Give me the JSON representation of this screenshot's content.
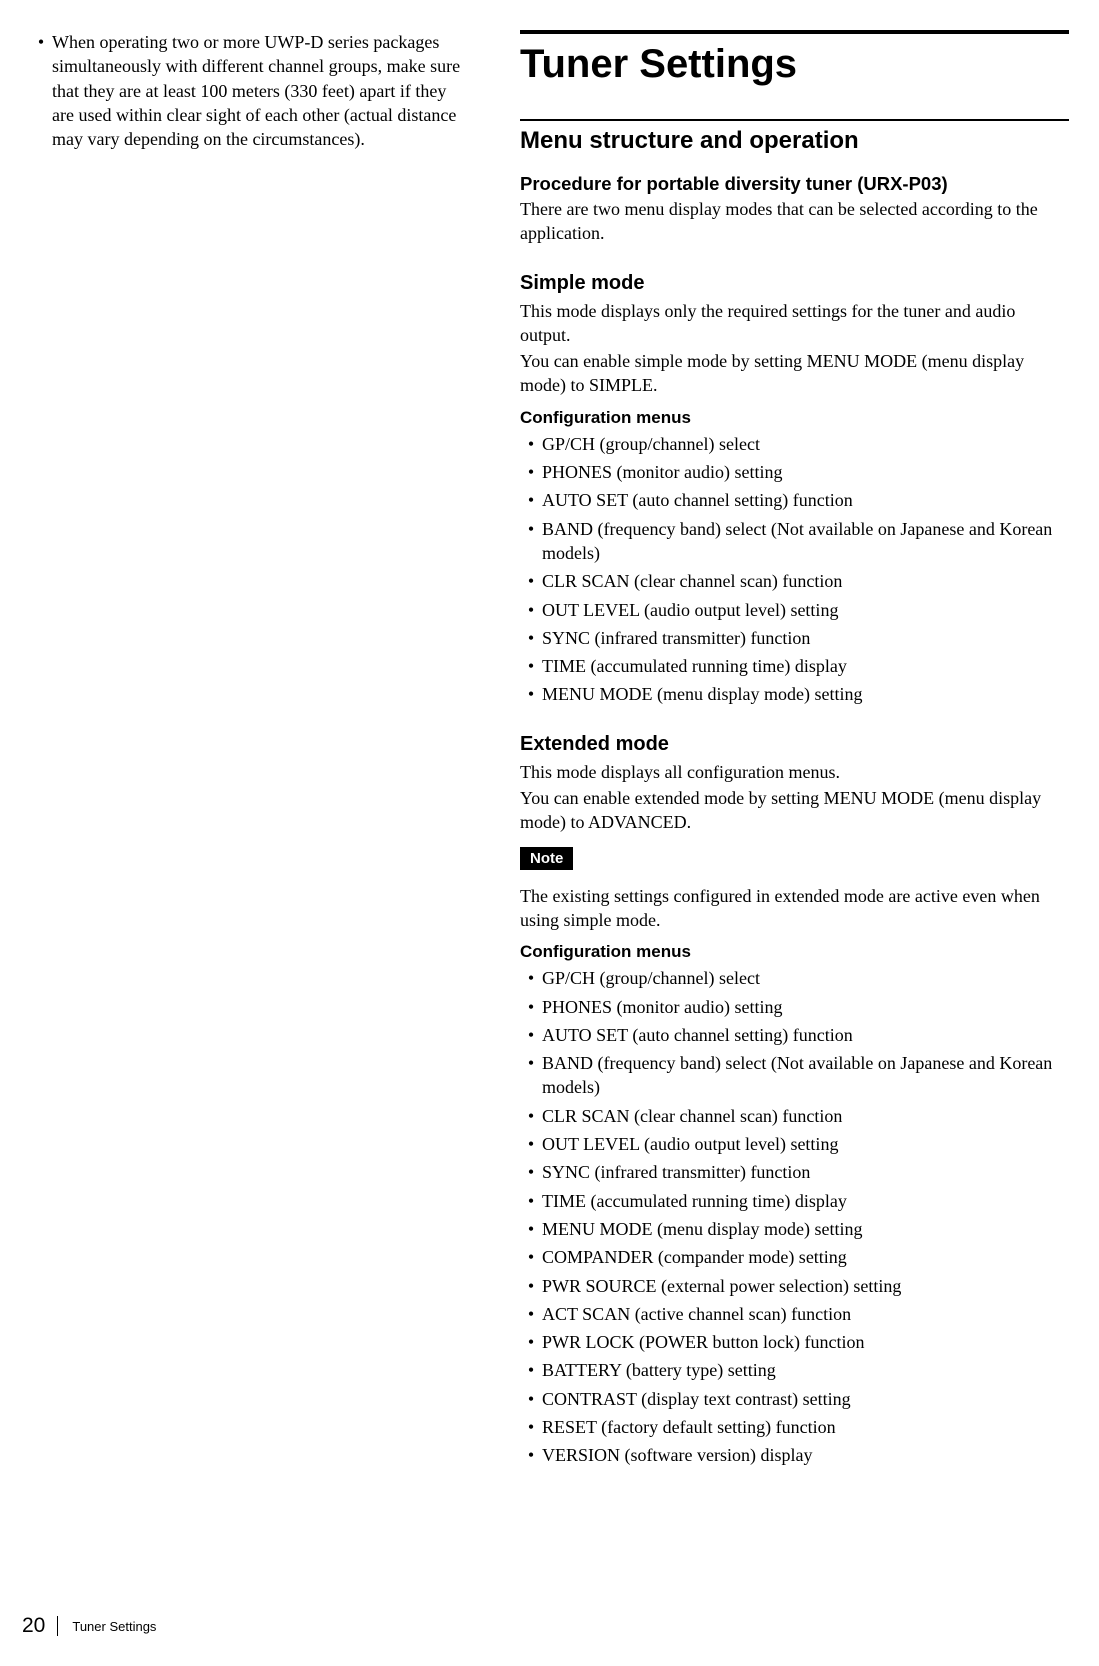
{
  "left": {
    "bullet": "When operating two or more UWP-D series packages simultaneously with different channel groups, make sure that they are at least 100 meters (330 feet) apart if they are used within clear sight of each other (actual distance may vary depending on the circumstances)."
  },
  "right": {
    "title": "Tuner Settings",
    "section_title": "Menu structure and operation",
    "procedure_title": "Procedure for portable diversity tuner (URX-P03)",
    "procedure_body": "There are two menu display modes that can be selected according to the application.",
    "simple": {
      "title": "Simple mode",
      "body1": "This mode displays only the required settings for the tuner and audio output.",
      "body2": "You can enable simple mode by setting MENU MODE (menu display mode) to SIMPLE.",
      "config_title": "Configuration menus",
      "items": [
        "GP/CH (group/channel) select",
        "PHONES (monitor audio) setting",
        "AUTO SET (auto channel setting) function",
        "BAND (frequency band) select (Not available on Japanese and Korean models)",
        "CLR SCAN (clear channel scan) function",
        "OUT LEVEL (audio output level) setting",
        "SYNC (infrared transmitter) function",
        "TIME (accumulated running time) display",
        "MENU MODE (menu display mode) setting"
      ]
    },
    "extended": {
      "title": "Extended mode",
      "body1": "This mode displays all configuration menus.",
      "body2": "You can enable extended mode by setting MENU MODE (menu display mode) to ADVANCED.",
      "note_label": "Note",
      "note_body": "The existing settings configured in extended mode are active even when using simple mode.",
      "config_title": "Configuration menus",
      "items": [
        "GP/CH (group/channel) select",
        "PHONES (monitor audio) setting",
        "AUTO SET (auto channel setting) function",
        "BAND (frequency band) select (Not available on Japanese and Korean models)",
        "CLR SCAN (clear channel scan) function",
        "OUT LEVEL (audio output level) setting",
        "SYNC (infrared transmitter) function",
        "TIME (accumulated running time) display",
        "MENU MODE (menu display mode) setting",
        "COMPANDER (compander mode) setting",
        "PWR SOURCE (external power selection) setting",
        "ACT SCAN (active channel scan) function",
        "PWR LOCK (POWER button lock) function",
        "BATTERY (battery type) setting",
        "CONTRAST (display text contrast) setting",
        "RESET (factory default setting) function",
        "VERSION (software version) display"
      ]
    }
  },
  "footer": {
    "page": "20",
    "title": "Tuner Settings"
  }
}
